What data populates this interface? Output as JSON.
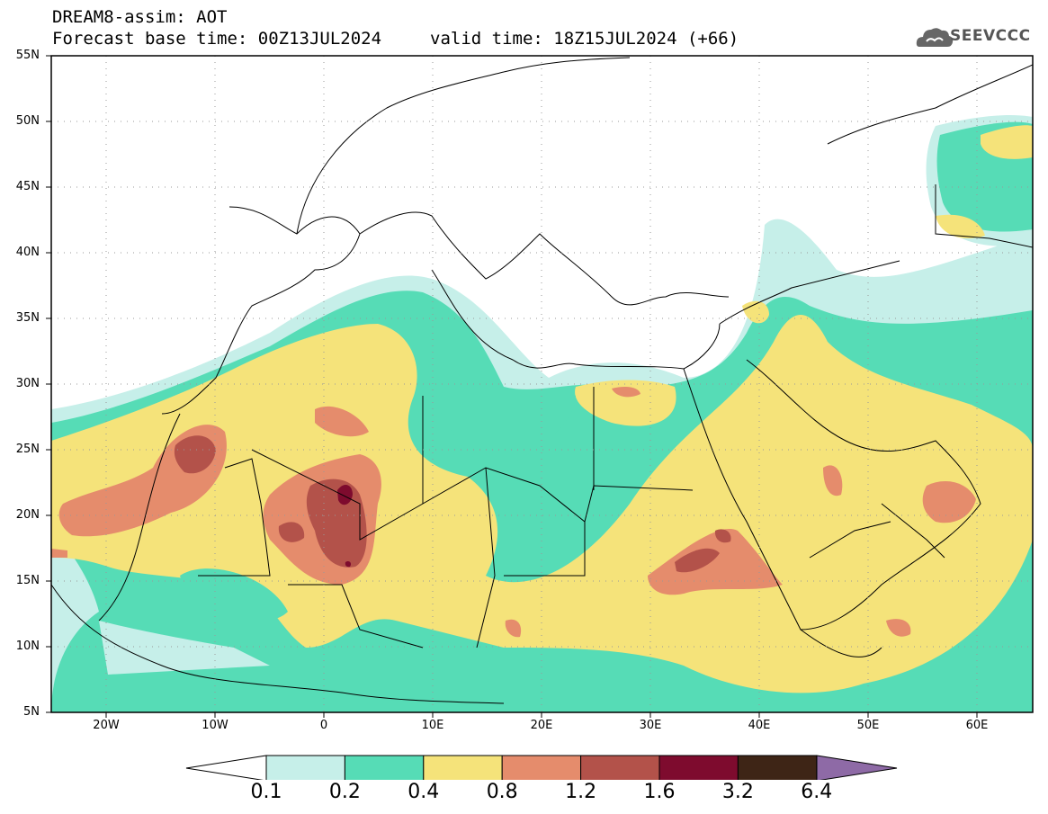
{
  "header": {
    "title": "DREAM8-assim: AOT",
    "base_time": "Forecast base time: 00Z13JUL2024",
    "valid_time": "valid time: 18Z15JUL2024 (+66)"
  },
  "logo": {
    "text": "SEEVCCC",
    "icon": "cloud-icon"
  },
  "axes": {
    "lat_labels": [
      "55N",
      "50N",
      "45N",
      "40N",
      "35N",
      "30N",
      "25N",
      "20N",
      "15N",
      "10N",
      "5N"
    ],
    "lon_labels": [
      "20W",
      "10W",
      "0",
      "10E",
      "20E",
      "30E",
      "40E",
      "50E",
      "60E"
    ],
    "lat_range": [
      5,
      55
    ],
    "lon_range": [
      -25,
      65
    ],
    "grid": "dotted"
  },
  "colorbar": {
    "levels": [
      "0.1",
      "0.2",
      "0.4",
      "0.8",
      "1.2",
      "1.6",
      "3.2",
      "6.4"
    ],
    "colors": [
      "#c6efe9",
      "#56dcb6",
      "#f5e37a",
      "#e58c6c",
      "#b3524a",
      "#7e0b2e",
      "#3e2516",
      "#8e6aa6"
    ],
    "under_color": "#ffffff",
    "over_color": "#8e6aa6"
  }
}
